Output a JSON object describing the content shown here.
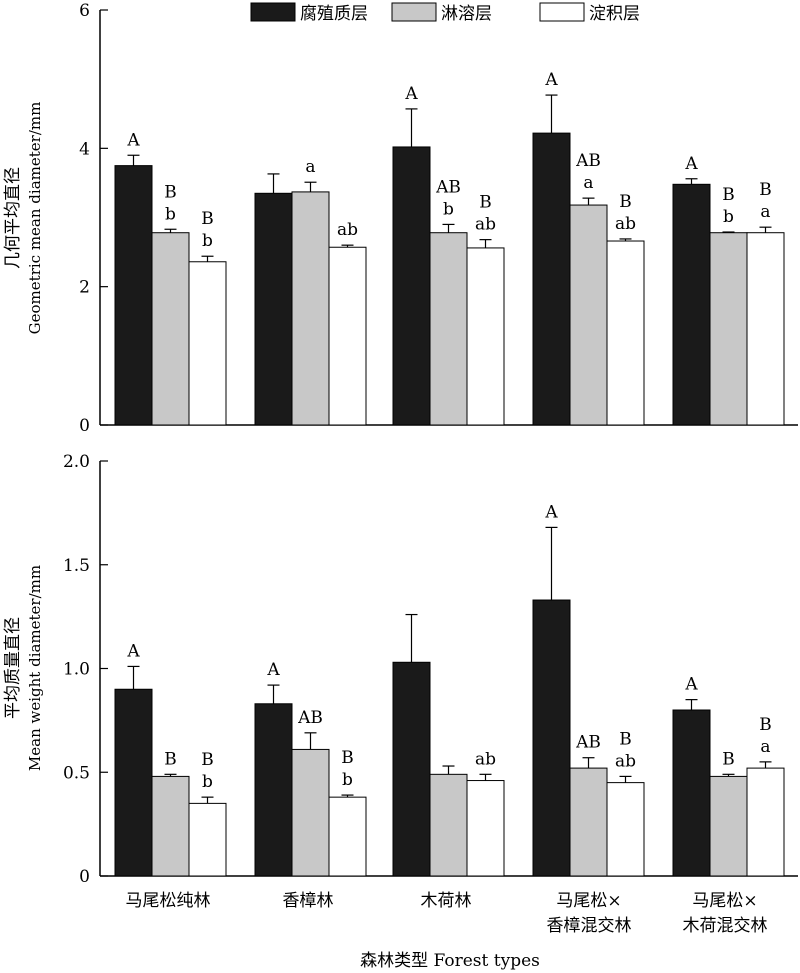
{
  "legend": {
    "items": [
      {
        "label": "腐殖质层",
        "color": "#1a1a1a"
      },
      {
        "label": "淋溶层",
        "color": "#c8c8c8"
      },
      {
        "label": "淀积层",
        "color": "#ffffff"
      }
    ]
  },
  "x_axis_label": "森林类型 Forest types",
  "category_labels": [
    {
      "line1": "马尾松纯林",
      "line2": ""
    },
    {
      "line1": "香樟林",
      "line2": ""
    },
    {
      "line1": "木荷林",
      "line2": ""
    },
    {
      "line1": "马尾松×",
      "line2": "香樟混交林"
    },
    {
      "line1": "马尾松×",
      "line2": "木荷混交林"
    }
  ],
  "chart_data": [
    {
      "type": "bar",
      "ylabel_cn": "几何平均直径",
      "ylabel_en": "Geometric mean diameter/mm",
      "ylim": [
        0,
        6
      ],
      "yticks": [
        "0",
        "2",
        "4",
        "6"
      ],
      "grid": false,
      "legend_position": "top",
      "categories": [
        "马尾松纯林",
        "香樟林",
        "木荷林",
        "马尾松×香樟混交林",
        "马尾松×木荷混交林"
      ],
      "series": [
        {
          "name": "腐殖质层",
          "values": [
            3.75,
            3.35,
            4.02,
            4.22,
            3.48
          ],
          "errors": [
            0.15,
            0.28,
            0.55,
            0.55,
            0.08
          ],
          "labels": [
            [
              "A"
            ],
            [],
            [
              "A"
            ],
            [
              "A"
            ],
            [
              "A"
            ]
          ]
        },
        {
          "name": "淋溶层",
          "values": [
            2.78,
            3.37,
            2.78,
            3.18,
            2.78
          ],
          "errors": [
            0.05,
            0.14,
            0.12,
            0.1,
            0.01
          ],
          "labels": [
            [
              "B",
              "b"
            ],
            [
              "a"
            ],
            [
              "AB",
              "b"
            ],
            [
              "AB",
              "a"
            ],
            [
              "B",
              "b"
            ]
          ]
        },
        {
          "name": "淀积层",
          "values": [
            2.36,
            2.57,
            2.56,
            2.66,
            2.78
          ],
          "errors": [
            0.08,
            0.03,
            0.12,
            0.03,
            0.08
          ],
          "labels": [
            [
              "B",
              "b"
            ],
            [
              "ab"
            ],
            [
              "B",
              "ab"
            ],
            [
              "B",
              "ab"
            ],
            [
              "B",
              "a"
            ]
          ]
        }
      ]
    },
    {
      "type": "bar",
      "ylabel_cn": "平均质量直径",
      "ylabel_en": "Mean weight diameter/mm",
      "ylim": [
        0,
        2
      ],
      "yticks": [
        "0",
        "0.5",
        "1.0",
        "1.5",
        "2.0"
      ],
      "grid": false,
      "categories": [
        "马尾松纯林",
        "香樟林",
        "木荷林",
        "马尾松×香樟混交林",
        "马尾松×木荷混交林"
      ],
      "series": [
        {
          "name": "腐殖质层",
          "values": [
            0.9,
            0.83,
            1.03,
            1.33,
            0.8
          ],
          "errors": [
            0.11,
            0.09,
            0.23,
            0.35,
            0.05
          ],
          "labels": [
            [
              "A"
            ],
            [
              "A"
            ],
            [],
            [
              "A"
            ],
            [
              "A"
            ]
          ]
        },
        {
          "name": "淋溶层",
          "values": [
            0.48,
            0.61,
            0.49,
            0.52,
            0.48
          ],
          "errors": [
            0.01,
            0.08,
            0.04,
            0.05,
            0.01
          ],
          "labels": [
            [
              "B"
            ],
            [
              "AB"
            ],
            [],
            [
              "AB"
            ],
            [
              "B"
            ]
          ]
        },
        {
          "name": "淀积层",
          "values": [
            0.35,
            0.38,
            0.46,
            0.45,
            0.52
          ],
          "errors": [
            0.03,
            0.01,
            0.03,
            0.03,
            0.03
          ],
          "labels": [
            [
              "B",
              "b"
            ],
            [
              "B",
              "b"
            ],
            [
              "ab"
            ],
            [
              "B",
              "ab"
            ],
            [
              "B",
              "a"
            ]
          ]
        }
      ]
    }
  ]
}
